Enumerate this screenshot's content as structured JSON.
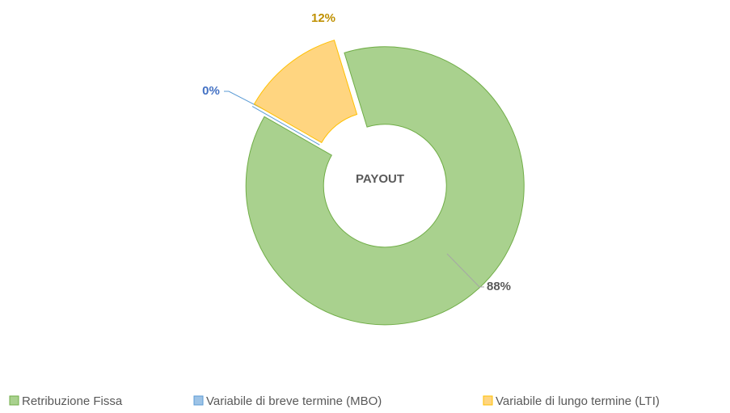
{
  "chart_data": {
    "type": "donut",
    "center_label": "PAYOUT",
    "categories": [
      "Retribuzione Fissa",
      "Variabile di breve termine (MBO)",
      "Variabile di lungo termine (LTI)"
    ],
    "values": [
      88,
      0,
      12
    ],
    "value_labels": [
      "88%",
      "0%",
      "12%"
    ],
    "colors": [
      "#a9d18e",
      "#9dc3e6",
      "#ffd580"
    ],
    "legend": "bottom"
  }
}
